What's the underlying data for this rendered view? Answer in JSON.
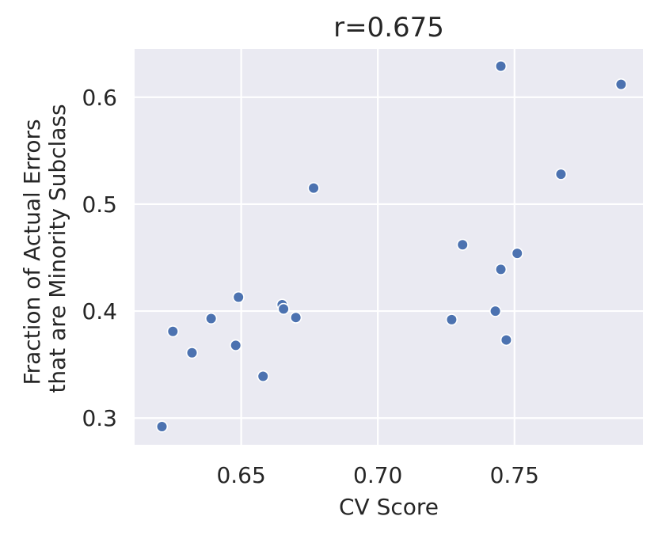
{
  "chart_data": {
    "type": "scatter",
    "title": "r=0.675",
    "xlabel": "CV Score",
    "ylabel_lines": [
      "Fraction of Actual Errors",
      "that are Minority Subclass"
    ],
    "xlim": [
      0.611,
      0.797
    ],
    "ylim": [
      0.275,
      0.645
    ],
    "xticks": [
      0.65,
      0.7,
      0.75
    ],
    "xtick_labels": [
      "0.65",
      "0.70",
      "0.75"
    ],
    "yticks": [
      0.3,
      0.4,
      0.5,
      0.6
    ],
    "ytick_labels": [
      "0.3",
      "0.4",
      "0.5",
      "0.6"
    ],
    "grid": true,
    "colors": {
      "background": "#eaeaf2",
      "grid": "#ffffff",
      "point": "#4c72b0",
      "point_edge": "#ffffff"
    },
    "x": [
      0.621,
      0.625,
      0.632,
      0.639,
      0.648,
      0.649,
      0.658,
      0.665,
      0.6655,
      0.67,
      0.6765,
      0.727,
      0.731,
      0.743,
      0.745,
      0.745,
      0.747,
      0.751,
      0.767,
      0.789
    ],
    "y": [
      0.292,
      0.381,
      0.361,
      0.393,
      0.368,
      0.413,
      0.339,
      0.406,
      0.402,
      0.394,
      0.515,
      0.392,
      0.462,
      0.4,
      0.629,
      0.439,
      0.373,
      0.454,
      0.528,
      0.612
    ]
  }
}
